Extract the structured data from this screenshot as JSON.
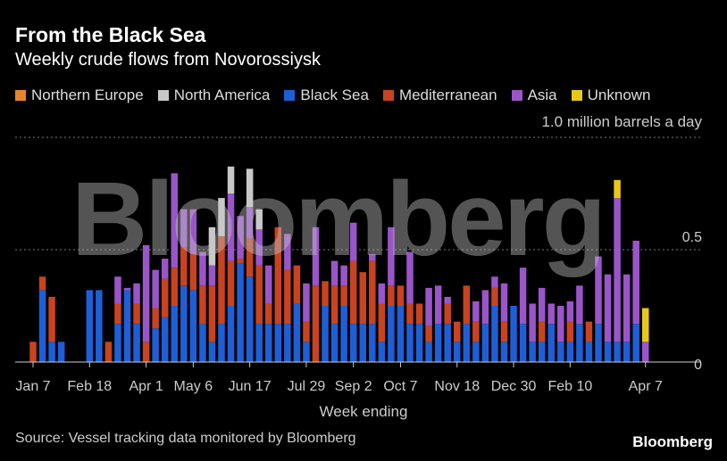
{
  "title": "From the Black Sea",
  "subtitle": "Weekly crude flows from Novorossiysk",
  "unit_label": "1.0 million barrels a day",
  "source": "Source: Vessel tracking data monitored by Bloomberg",
  "brand": "Bloomberg",
  "watermark": "Bloomberg",
  "colors": {
    "Northern Europe": "#e8852c",
    "North America": "#c8c8c8",
    "Black Sea": "#1e5fd6",
    "Mediterranean": "#c8431f",
    "Asia": "#9a55c8",
    "Unknown": "#e8c817"
  },
  "chart_data": {
    "type": "bar",
    "stacked": true,
    "xlabel": "Week ending",
    "ylabel": "",
    "ylim": [
      0,
      1.0
    ],
    "yticks": [
      0,
      0.5,
      1.0
    ],
    "ytick_labels": [
      "0",
      "0.5",
      "1.0"
    ],
    "xtick_labels": [
      {
        "index": 0,
        "label": "Jan 7"
      },
      {
        "index": 6,
        "label": "Feb 18"
      },
      {
        "index": 12,
        "label": "Apr 1"
      },
      {
        "index": 17,
        "label": "May 6"
      },
      {
        "index": 23,
        "label": "Jun 17"
      },
      {
        "index": 29,
        "label": "Jul 29"
      },
      {
        "index": 34,
        "label": "Sep 2"
      },
      {
        "index": 39,
        "label": "Oct 7"
      },
      {
        "index": 45,
        "label": "Nov 18"
      },
      {
        "index": 51,
        "label": "Dec 30"
      },
      {
        "index": 57,
        "label": "Feb 10"
      },
      {
        "index": 65,
        "label": "Apr 7"
      }
    ],
    "legend": [
      "Northern Europe",
      "North America",
      "Black Sea",
      "Mediterranean",
      "Asia",
      "Unknown"
    ],
    "legend_position": "top",
    "grid": "horizontal dotted",
    "series": [
      {
        "name": "Black Sea",
        "values": [
          0,
          0.32,
          0.09,
          0.09,
          0,
          0,
          0.32,
          0.32,
          0,
          0.17,
          0.32,
          0.17,
          0,
          0.15,
          0.2,
          0.25,
          0.34,
          0.32,
          0.17,
          0.09,
          0.17,
          0.25,
          0.44,
          0.38,
          0.17,
          0.17,
          0.17,
          0.17,
          0.26,
          0.09,
          0,
          0.25,
          0.17,
          0.25,
          0.17,
          0.17,
          0.17,
          0.09,
          0.25,
          0.25,
          0.17,
          0.17,
          0.09,
          0.17,
          0.17,
          0.09,
          0.17,
          0.09,
          0.17,
          0.25,
          0.09,
          0.25,
          0.17,
          0.09,
          0.09,
          0.17,
          0.09,
          0.09,
          0.17,
          0.09,
          0.17,
          0.09,
          0.09,
          0.09,
          0.17,
          0
        ]
      },
      {
        "name": "Mediterranean",
        "values": [
          0.09,
          0.06,
          0.2,
          0,
          0,
          0,
          0,
          0,
          0.09,
          0.09,
          0,
          0.09,
          0.09,
          0.09,
          0.17,
          0.17,
          0.17,
          0.16,
          0.17,
          0.25,
          0.39,
          0.2,
          0.02,
          0.17,
          0.26,
          0.09,
          0.43,
          0.24,
          0.17,
          0.09,
          0.34,
          0.11,
          0.17,
          0.09,
          0.28,
          0.23,
          0.28,
          0.17,
          0.09,
          0.09,
          0.09,
          0.09,
          0.07,
          0,
          0.09,
          0.09,
          0.17,
          0.09,
          0,
          0.08,
          0.09,
          0,
          0,
          0,
          0.09,
          0,
          0,
          0.09,
          0,
          0.09,
          0,
          0,
          0,
          0,
          0,
          0
        ]
      },
      {
        "name": "Asia",
        "values": [
          0,
          0,
          0,
          0,
          0,
          0,
          0,
          0,
          0,
          0.12,
          0.01,
          0.09,
          0.43,
          0.17,
          0.09,
          0.42,
          0.17,
          0.2,
          0.15,
          0.09,
          0,
          0.3,
          0.19,
          0.14,
          0.16,
          0.17,
          0,
          0.16,
          0,
          0.17,
          0.26,
          0,
          0.11,
          0.09,
          0.17,
          0,
          0.03,
          0.09,
          0.26,
          0,
          0.23,
          0,
          0.17,
          0.17,
          0.03,
          0,
          0,
          0.09,
          0.15,
          0.05,
          0.17,
          0,
          0.25,
          0.17,
          0.15,
          0.09,
          0.16,
          0.09,
          0.17,
          0,
          0.3,
          0.3,
          0.64,
          0.3,
          0.37,
          0.09
        ]
      },
      {
        "name": "North America",
        "values": [
          0,
          0,
          0,
          0,
          0,
          0,
          0,
          0,
          0,
          0,
          0,
          0,
          0,
          0,
          0,
          0,
          0,
          0,
          0,
          0.17,
          0.17,
          0.12,
          0,
          0.17,
          0.09,
          0,
          0,
          0,
          0,
          0,
          0,
          0,
          0,
          0,
          0,
          0,
          0,
          0,
          0,
          0,
          0,
          0,
          0,
          0,
          0,
          0,
          0,
          0,
          0,
          0,
          0,
          0,
          0,
          0,
          0,
          0,
          0,
          0,
          0,
          0,
          0,
          0,
          0,
          0,
          0,
          0
        ]
      },
      {
        "name": "Unknown",
        "values": [
          0,
          0,
          0,
          0,
          0,
          0,
          0,
          0,
          0,
          0,
          0,
          0,
          0,
          0,
          0,
          0,
          0,
          0,
          0,
          0,
          0,
          0,
          0,
          0,
          0,
          0,
          0,
          0,
          0,
          0,
          0,
          0,
          0,
          0,
          0,
          0,
          0,
          0,
          0,
          0,
          0,
          0,
          0,
          0,
          0,
          0,
          0,
          0,
          0,
          0,
          0,
          0,
          0,
          0,
          0,
          0,
          0,
          0,
          0,
          0,
          0,
          0,
          0.08,
          0,
          0,
          0.15
        ]
      }
    ]
  }
}
